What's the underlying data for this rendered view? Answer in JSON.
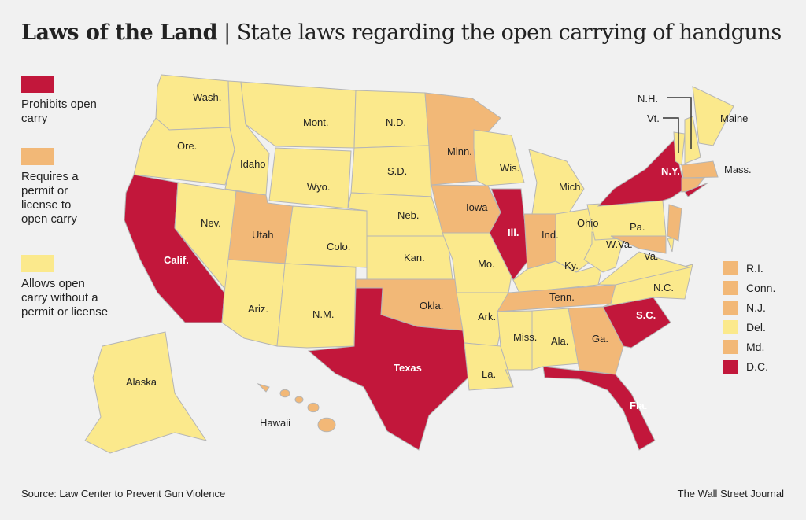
{
  "header": {
    "title": "Laws of the Land",
    "separator": "|",
    "subtitle": "State laws regarding the open carrying of handguns"
  },
  "colors": {
    "prohibits": "#c2173b",
    "permit": "#f2b877",
    "allows": "#fbe98c",
    "border": "#b5b5b5",
    "background": "#f1f1f1"
  },
  "legend": [
    {
      "category": "prohibits",
      "label": "Prohibits open carry"
    },
    {
      "category": "permit",
      "label": "Requires a permit or license to open carry"
    },
    {
      "category": "allows",
      "label": "Allows open carry without a permit or license"
    }
  ],
  "states": [
    {
      "id": "wa",
      "label": "Wash.",
      "category": "allows"
    },
    {
      "id": "or",
      "label": "Ore.",
      "category": "allows"
    },
    {
      "id": "ca",
      "label": "Calif.",
      "category": "prohibits"
    },
    {
      "id": "nv",
      "label": "Nev.",
      "category": "allows"
    },
    {
      "id": "id",
      "label": "Idaho",
      "category": "allows"
    },
    {
      "id": "mt",
      "label": "Mont.",
      "category": "allows"
    },
    {
      "id": "wy",
      "label": "Wyo.",
      "category": "allows"
    },
    {
      "id": "ut",
      "label": "Utah",
      "category": "permit"
    },
    {
      "id": "az",
      "label": "Ariz.",
      "category": "allows"
    },
    {
      "id": "co",
      "label": "Colo.",
      "category": "allows"
    },
    {
      "id": "nm",
      "label": "N.M.",
      "category": "allows"
    },
    {
      "id": "nd",
      "label": "N.D.",
      "category": "allows"
    },
    {
      "id": "sd",
      "label": "S.D.",
      "category": "allows"
    },
    {
      "id": "ne",
      "label": "Neb.",
      "category": "allows"
    },
    {
      "id": "ks",
      "label": "Kan.",
      "category": "allows"
    },
    {
      "id": "ok",
      "label": "Okla.",
      "category": "permit"
    },
    {
      "id": "tx",
      "label": "Texas",
      "category": "prohibits"
    },
    {
      "id": "mn",
      "label": "Minn.",
      "category": "permit"
    },
    {
      "id": "ia",
      "label": "Iowa",
      "category": "permit"
    },
    {
      "id": "mo",
      "label": "Mo.",
      "category": "allows"
    },
    {
      "id": "ar",
      "label": "Ark.",
      "category": "allows"
    },
    {
      "id": "la",
      "label": "La.",
      "category": "allows"
    },
    {
      "id": "wi",
      "label": "Wis.",
      "category": "allows"
    },
    {
      "id": "il",
      "label": "Ill.",
      "category": "prohibits"
    },
    {
      "id": "mi",
      "label": "Mich.",
      "category": "allows"
    },
    {
      "id": "in",
      "label": "Ind.",
      "category": "permit"
    },
    {
      "id": "oh",
      "label": "Ohio",
      "category": "allows"
    },
    {
      "id": "ky",
      "label": "Ky.",
      "category": "allows"
    },
    {
      "id": "tn",
      "label": "Tenn.",
      "category": "permit"
    },
    {
      "id": "ms",
      "label": "Miss.",
      "category": "allows"
    },
    {
      "id": "al",
      "label": "Ala.",
      "category": "allows"
    },
    {
      "id": "ga",
      "label": "Ga.",
      "category": "permit"
    },
    {
      "id": "fl",
      "label": "Fla.",
      "category": "prohibits"
    },
    {
      "id": "sc",
      "label": "S.C.",
      "category": "prohibits"
    },
    {
      "id": "nc",
      "label": "N.C.",
      "category": "allows"
    },
    {
      "id": "va",
      "label": "Va.",
      "category": "allows"
    },
    {
      "id": "wv",
      "label": "W.Va.",
      "category": "allows"
    },
    {
      "id": "pa",
      "label": "Pa.",
      "category": "allows"
    },
    {
      "id": "ny",
      "label": "N.Y.",
      "category": "prohibits"
    },
    {
      "id": "vt",
      "label": "Vt.",
      "category": "allows"
    },
    {
      "id": "nh",
      "label": "N.H.",
      "category": "allows"
    },
    {
      "id": "me",
      "label": "Maine",
      "category": "allows"
    },
    {
      "id": "ma",
      "label": "Mass.",
      "category": "permit"
    },
    {
      "id": "ak",
      "label": "Alaska",
      "category": "allows"
    },
    {
      "id": "hi",
      "label": "Hawaii",
      "category": "permit"
    }
  ],
  "small_states": [
    {
      "label": "R.I.",
      "category": "permit"
    },
    {
      "label": "Conn.",
      "category": "permit"
    },
    {
      "label": "N.J.",
      "category": "permit"
    },
    {
      "label": "Del.",
      "category": "allows"
    },
    {
      "label": "Md.",
      "category": "permit"
    },
    {
      "label": "D.C.",
      "category": "prohibits"
    }
  ],
  "footer": {
    "source": "Source: Law Center to Prevent Gun Violence",
    "credit": "The Wall Street Journal"
  }
}
